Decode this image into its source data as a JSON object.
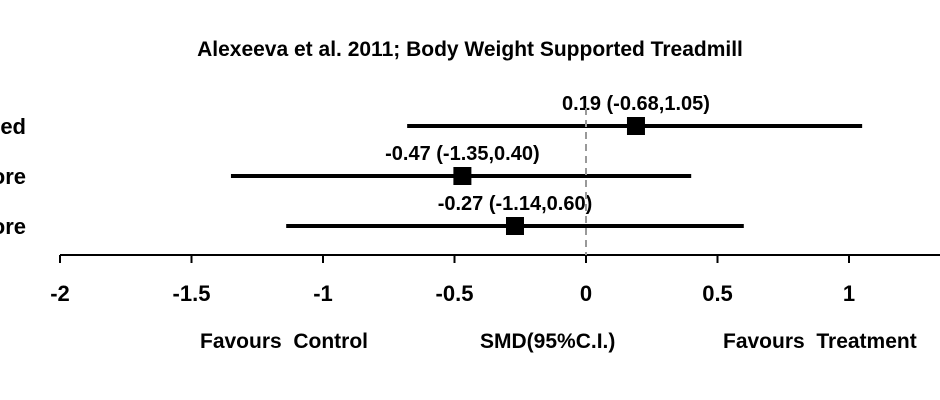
{
  "chart_data": {
    "type": "forest",
    "title": "Alexeeva et al. 2011; Body Weight Supported Treadmill",
    "xlabel": "SMD(95%C.I.)",
    "favours_left": "Favours  Control",
    "favours_right": "Favours  Treatment",
    "xlim": [
      -2,
      1.25
    ],
    "xticks": [
      -2,
      -1.5,
      -1,
      -0.5,
      0,
      0.5,
      1
    ],
    "xtick_labels": [
      "-2",
      "-1.5",
      "-1",
      "-0.5",
      "0",
      "0.5",
      "1"
    ],
    "reference_line": 0,
    "rows": [
      {
        "label": "ed",
        "est": 0.19,
        "lo": -0.68,
        "hi": 1.05,
        "annotation": "0.19 (-0.68,1.05)"
      },
      {
        "label": "ore",
        "est": -0.47,
        "lo": -1.35,
        "hi": 0.4,
        "annotation": "-0.47 (-1.35,0.40)"
      },
      {
        "label": "ore",
        "est": -0.27,
        "lo": -1.14,
        "hi": 0.6,
        "annotation": "-0.27 (-1.14,0.60)"
      }
    ]
  }
}
